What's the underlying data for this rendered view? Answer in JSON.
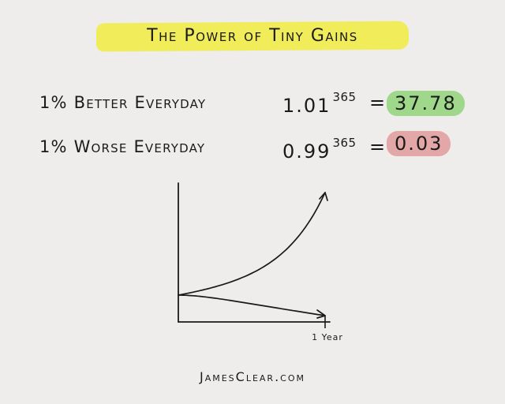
{
  "title": "The Power of Tiny Gains",
  "rows": [
    {
      "label": "1% Better Everyday",
      "base": "1.01",
      "exponent": "365",
      "equals": "=",
      "result": "37.78",
      "color": "#9fd88b"
    },
    {
      "label": "1% Worse Everyday",
      "base": "0.99",
      "exponent": "365",
      "equals": "=",
      "result": "0.03",
      "color": "#e2a7a6"
    }
  ],
  "highlight_color": "#f1ec5a",
  "footer": "JamesClear.com",
  "chart_data": {
    "type": "line",
    "title": "",
    "xlabel": "",
    "ylabel": "",
    "x_tick_labels": [
      "1 Year"
    ],
    "series": [
      {
        "points": [
          [
            0,
            1
          ],
          [
            73,
            2.07
          ],
          [
            146,
            4.27
          ],
          [
            219,
            8.83
          ],
          [
            292,
            18.28
          ],
          [
            365,
            37.78
          ]
        ]
      },
      {
        "points": [
          [
            0,
            1
          ],
          [
            73,
            0.48
          ],
          [
            146,
            0.23
          ],
          [
            219,
            0.11
          ],
          [
            292,
            0.05
          ],
          [
            365,
            0.03
          ]
        ]
      }
    ],
    "xlim": [
      0,
      365
    ],
    "grid": false,
    "legend": "none"
  }
}
